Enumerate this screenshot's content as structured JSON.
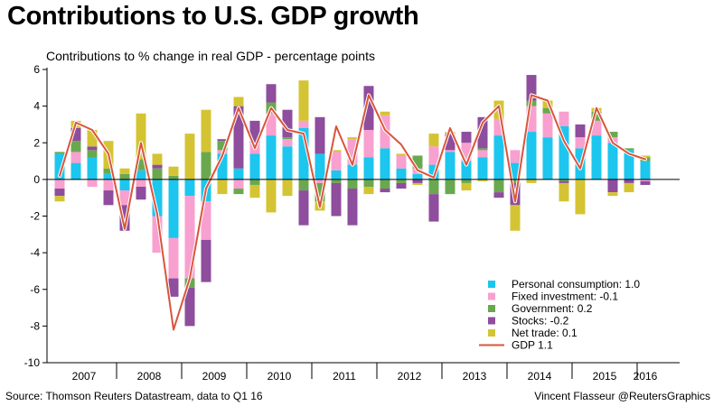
{
  "title": "Contributions to U.S. GDP growth",
  "subtitle": "Contributions to % change in real GDP - percentage points",
  "source": "Source: Thomson Reuters Datastream, data to Q1 16",
  "credit": "Vincent Flasseur @ReutersGraphics",
  "colors": {
    "consumption": "#1cc6ee",
    "investment": "#f8a0cf",
    "government": "#6aa84f",
    "stocks": "#8e4d9d",
    "net_trade": "#d4c434",
    "gdp": "#d9553b"
  },
  "chart_data": {
    "type": "bar",
    "stacked": true,
    "ylim": [
      -10,
      6
    ],
    "yticks": [
      6,
      4,
      2,
      0,
      -2,
      -4,
      -6,
      -8,
      -10
    ],
    "years": [
      "2007",
      "2008",
      "2009",
      "2010",
      "2011",
      "2012",
      "2013",
      "2014",
      "2015",
      "2016"
    ],
    "quarters": [
      "Q1 2007",
      "Q2 2007",
      "Q3 2007",
      "Q4 2007",
      "Q1 2008",
      "Q2 2008",
      "Q3 2008",
      "Q4 2008",
      "Q1 2009",
      "Q2 2009",
      "Q3 2009",
      "Q4 2009",
      "Q1 2010",
      "Q2 2010",
      "Q3 2010",
      "Q4 2010",
      "Q1 2011",
      "Q2 2011",
      "Q3 2011",
      "Q4 2011",
      "Q1 2012",
      "Q2 2012",
      "Q3 2012",
      "Q4 2012",
      "Q1 2013",
      "Q2 2013",
      "Q3 2013",
      "Q4 2013",
      "Q1 2014",
      "Q2 2014",
      "Q3 2014",
      "Q4 2014",
      "Q1 2015",
      "Q2 2015",
      "Q3 2015",
      "Q4 2015",
      "Q1 2016"
    ],
    "legend_position": "bottom-right",
    "series": [
      {
        "key": "consumption",
        "name": "Personal consumption: 1.0",
        "values": [
          1.4,
          0.9,
          1.2,
          0.3,
          -0.6,
          0.5,
          -2.0,
          -3.2,
          -0.9,
          -1.2,
          1.4,
          0.6,
          1.4,
          2.4,
          1.8,
          2.8,
          1.4,
          0.5,
          0.8,
          1.2,
          1.7,
          0.6,
          0.3,
          0.8,
          1.5,
          1.0,
          1.2,
          2.4,
          0.9,
          2.6,
          2.3,
          2.9,
          1.7,
          2.4,
          2.0,
          1.6,
          1.0
        ]
      },
      {
        "key": "investment",
        "name": "Fixed investment: -0.1",
        "values": [
          -0.5,
          0.6,
          -0.4,
          -0.6,
          -0.8,
          -0.4,
          -2.0,
          -2.2,
          -4.5,
          -2.1,
          0.2,
          -0.5,
          0.6,
          1.2,
          0.4,
          0.4,
          -0.2,
          1.0,
          1.4,
          1.5,
          1.8,
          0.7,
          0.3,
          1.0,
          0.1,
          1.0,
          0.4,
          0.9,
          0.7,
          1.4,
          1.3,
          0.8,
          0.6,
          0.8,
          0.3,
          0.0,
          -0.1
        ]
      },
      {
        "key": "government",
        "name": "Government: 0.2",
        "values": [
          0.1,
          0.6,
          0.4,
          0.3,
          0.3,
          0.6,
          0.6,
          0.2,
          -0.5,
          1.5,
          0.5,
          -0.3,
          -0.3,
          0.6,
          0.1,
          -0.6,
          -1.0,
          -0.2,
          -0.5,
          -0.4,
          -0.5,
          -0.2,
          0.7,
          -0.8,
          -0.8,
          -0.2,
          0.1,
          -0.7,
          -0.2,
          0.3,
          0.3,
          -0.1,
          0.0,
          0.5,
          0.3,
          0.1,
          0.2
        ]
      },
      {
        "key": "stocks",
        "name": "Stocks: -0.2",
        "values": [
          -0.4,
          0.7,
          0.2,
          -0.8,
          -1.4,
          -0.7,
          0.2,
          -1.0,
          -2.1,
          -2.3,
          0.1,
          3.4,
          1.2,
          1.0,
          1.5,
          -1.9,
          2.0,
          -1.8,
          -2.0,
          2.4,
          -0.2,
          -0.3,
          -0.2,
          -1.5,
          0.9,
          0.6,
          1.7,
          -0.3,
          -1.2,
          1.4,
          0.0,
          -0.1,
          0.7,
          0.0,
          -0.7,
          -0.2,
          -0.2
        ]
      },
      {
        "key": "net_trade",
        "name": "Net trade: 0.1",
        "values": [
          -0.3,
          0.4,
          0.9,
          1.5,
          0.3,
          2.5,
          0.6,
          0.5,
          2.5,
          2.3,
          -0.8,
          0.5,
          -0.7,
          -1.8,
          -0.9,
          2.2,
          -0.5,
          0.1,
          0.1,
          -0.4,
          0.2,
          0.1,
          -0.1,
          0.7,
          0.1,
          -0.4,
          -0.1,
          1.0,
          -1.4,
          -0.2,
          0.4,
          -1.0,
          -1.9,
          0.2,
          -0.2,
          -0.5,
          0.1
        ]
      }
    ],
    "line": {
      "name": "GDP 1.1",
      "values": [
        0.2,
        3.1,
        2.7,
        1.4,
        -2.7,
        2.0,
        -1.9,
        -8.2,
        -5.4,
        -0.5,
        1.3,
        3.9,
        1.7,
        3.9,
        2.7,
        2.5,
        -1.5,
        2.9,
        0.8,
        4.6,
        2.7,
        1.9,
        0.5,
        0.1,
        2.8,
        0.8,
        3.1,
        4.0,
        -1.2,
        4.6,
        4.3,
        2.1,
        0.6,
        3.9,
        2.0,
        1.4,
        1.1
      ]
    }
  }
}
